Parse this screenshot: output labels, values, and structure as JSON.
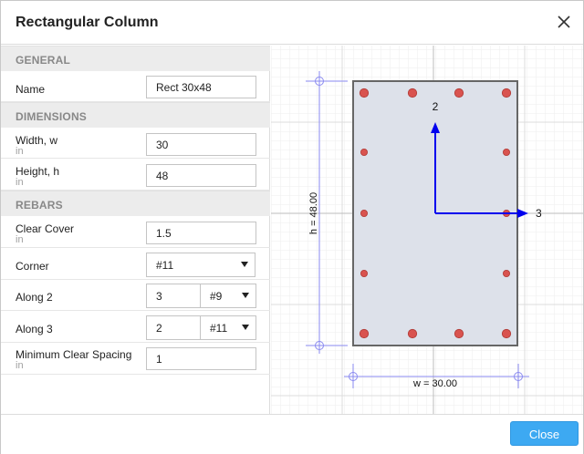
{
  "dialog": {
    "title": "Rectangular Column",
    "close_icon": "close-icon",
    "footer_button": "Close"
  },
  "sections": {
    "general": "GENERAL",
    "dimensions": "DIMENSIONS",
    "rebars": "REBARS"
  },
  "fields": {
    "name": {
      "label": "Name",
      "value": "Rect 30x48"
    },
    "width": {
      "label": "Width, w",
      "unit": "in",
      "value": "30"
    },
    "height": {
      "label": "Height, h",
      "unit": "in",
      "value": "48"
    },
    "clear_cover": {
      "label": "Clear Cover",
      "unit": "in",
      "value": "1.5"
    },
    "corner": {
      "label": "Corner",
      "value": "#11"
    },
    "along2": {
      "label": "Along 2",
      "count": "3",
      "size": "#9"
    },
    "along3": {
      "label": "Along 3",
      "count": "2",
      "size": "#11"
    },
    "min_clear_spacing": {
      "label": "Minimum Clear Spacing",
      "unit": "in",
      "value": "1"
    }
  },
  "drawing": {
    "axis2_label": "2",
    "axis3_label": "3",
    "width_dim": "w = 30.00",
    "height_dim": "h = 48.00",
    "section_fill": "#dde1ea",
    "section_stroke": "#666666",
    "rebar_color": "#d9534f",
    "axis_color": "#0000ee",
    "dim_color": "#8a8af0"
  }
}
